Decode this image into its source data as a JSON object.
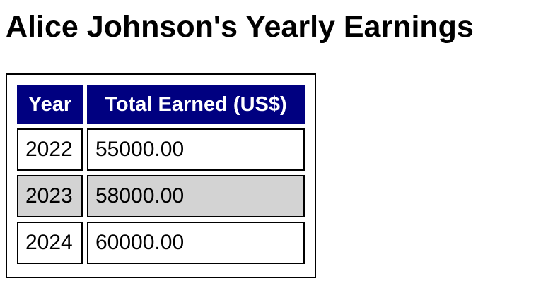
{
  "page": {
    "title": "Alice Johnson's Yearly Earnings"
  },
  "table": {
    "headers": [
      "Year",
      "Total Earned (US$)"
    ],
    "rows": [
      {
        "year": "2022",
        "total": "55000.00"
      },
      {
        "year": "2023",
        "total": "58000.00"
      },
      {
        "year": "2024",
        "total": "60000.00"
      }
    ]
  },
  "colors": {
    "header_bg": "#000080",
    "header_text": "#ffffff",
    "alt_row_bg": "#d3d3d3",
    "border": "#000000"
  }
}
